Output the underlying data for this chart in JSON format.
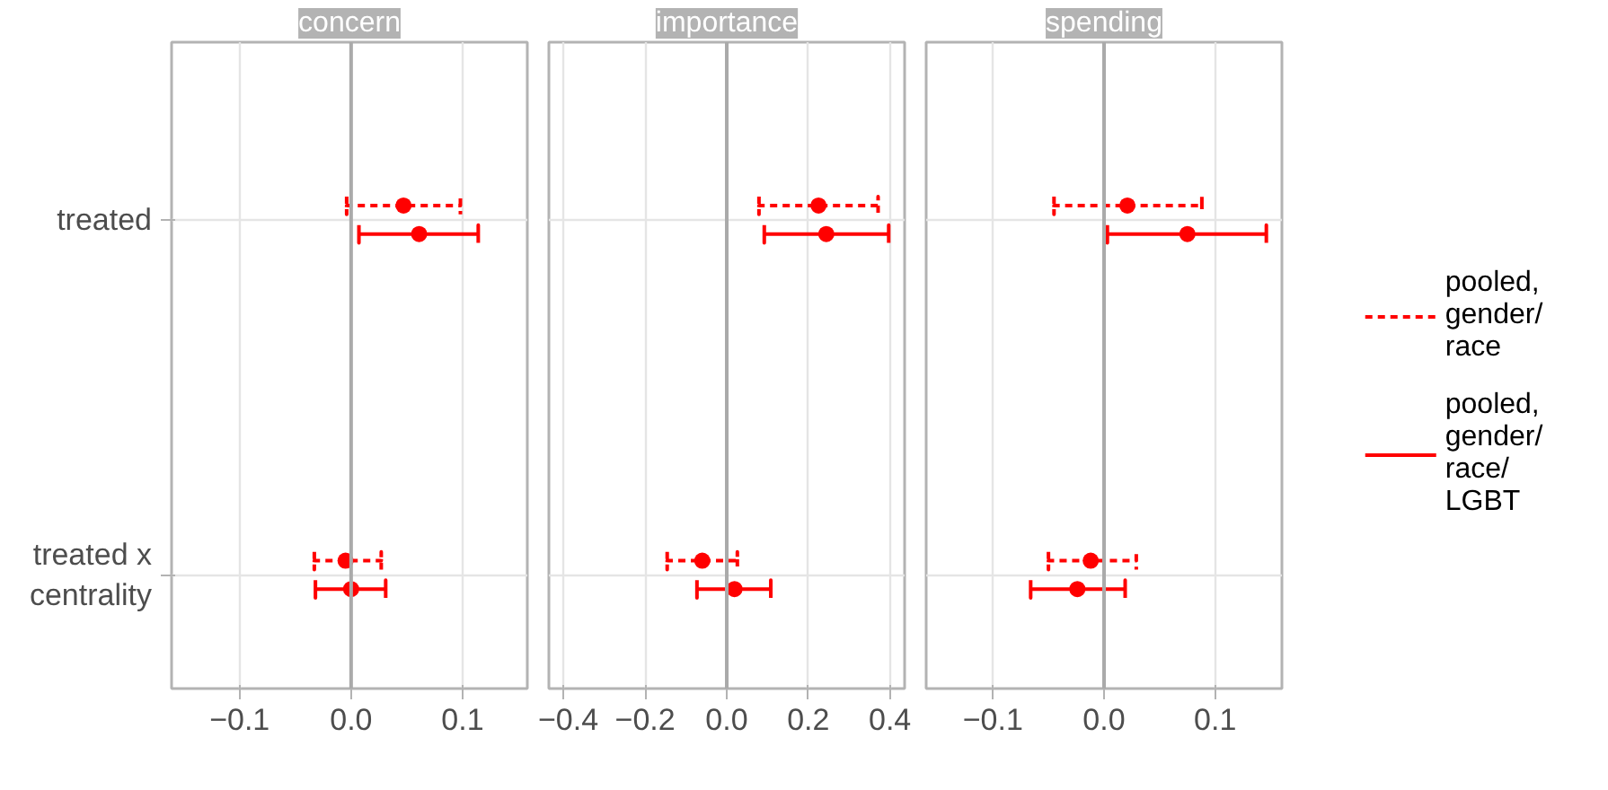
{
  "chart_data": [
    {
      "type": "scatter",
      "title": "concern",
      "orientation": "horizontal",
      "categories": [
        "treated",
        "treated x centrality"
      ],
      "xlim": [
        -0.161,
        0.158
      ],
      "xticks": [
        {
          "value": -0.1,
          "label": "−0.1"
        },
        {
          "value": 0,
          "label": "0.0"
        },
        {
          "value": 0.1,
          "label": "0.1"
        }
      ],
      "grid": true,
      "marker": "circle",
      "legend": false,
      "ref_lines": [
        {
          "axis": "x",
          "value": 0,
          "color": "#aaaaaa"
        }
      ],
      "series": [
        {
          "color": "#ff0000",
          "line_style": "dashed",
          "values": [
            0.047,
            -0.005
          ],
          "errors": [
            [
              -0.004,
              0.098
            ],
            [
              -0.033,
              0.027
            ]
          ]
        },
        {
          "color": "#ff0000",
          "line_style": "solid",
          "values": [
            0.061,
            0.0
          ],
          "errors": [
            [
              0.007,
              0.114
            ],
            [
              -0.032,
              0.031
            ]
          ]
        }
      ]
    },
    {
      "type": "scatter",
      "title": "importance",
      "orientation": "horizontal",
      "categories": [
        "treated",
        "treated x centrality"
      ],
      "tick_labels": "x",
      "xlim": [
        -0.436,
        0.436
      ],
      "xticks": [
        {
          "value": -0.4,
          "label": "−0.4"
        },
        {
          "value": -0.2,
          "label": "−0.2"
        },
        {
          "value": 0,
          "label": "0.0"
        },
        {
          "value": 0.2,
          "label": "0.2"
        },
        {
          "value": 0.4,
          "label": "0.4"
        }
      ],
      "grid": true,
      "marker": "circle",
      "legend": false,
      "ref_lines": [
        {
          "axis": "x",
          "value": 0,
          "color": "#aaaaaa"
        }
      ],
      "series": [
        {
          "color": "#ff0000",
          "line_style": "dashed",
          "values": [
            0.225,
            -0.06
          ],
          "errors": [
            [
              0.079,
              0.371
            ],
            [
              -0.146,
              0.026
            ]
          ]
        },
        {
          "color": "#ff0000",
          "line_style": "solid",
          "values": [
            0.244,
            0.019
          ],
          "errors": [
            [
              0.092,
              0.397
            ],
            [
              -0.073,
              0.108
            ]
          ]
        }
      ]
    },
    {
      "type": "scatter",
      "title": "spending",
      "orientation": "horizontal",
      "categories": [
        "treated",
        "treated x centrality"
      ],
      "tick_labels": "x",
      "xlim": [
        -0.16,
        0.16
      ],
      "xticks": [
        {
          "value": -0.1,
          "label": "−0.1"
        },
        {
          "value": 0,
          "label": "0.0"
        },
        {
          "value": 0.1,
          "label": "0.1"
        }
      ],
      "grid": true,
      "marker": "circle",
      "legend": "right",
      "ref_lines": [
        {
          "axis": "x",
          "value": 0,
          "color": "#aaaaaa"
        }
      ],
      "series": [
        {
          "name": "pooled, gender/race",
          "color": "#ff0000",
          "line_style": "dashed",
          "values": [
            0.021,
            -0.012
          ],
          "errors": [
            [
              -0.045,
              0.088
            ],
            [
              -0.05,
              0.029
            ]
          ]
        },
        {
          "name": "pooled, gender/race/LGBT",
          "color": "#ff0000",
          "line_style": "solid",
          "values": [
            0.075,
            -0.024
          ],
          "errors": [
            [
              0.003,
              0.146
            ],
            [
              -0.066,
              0.019
            ]
          ]
        }
      ]
    }
  ]
}
